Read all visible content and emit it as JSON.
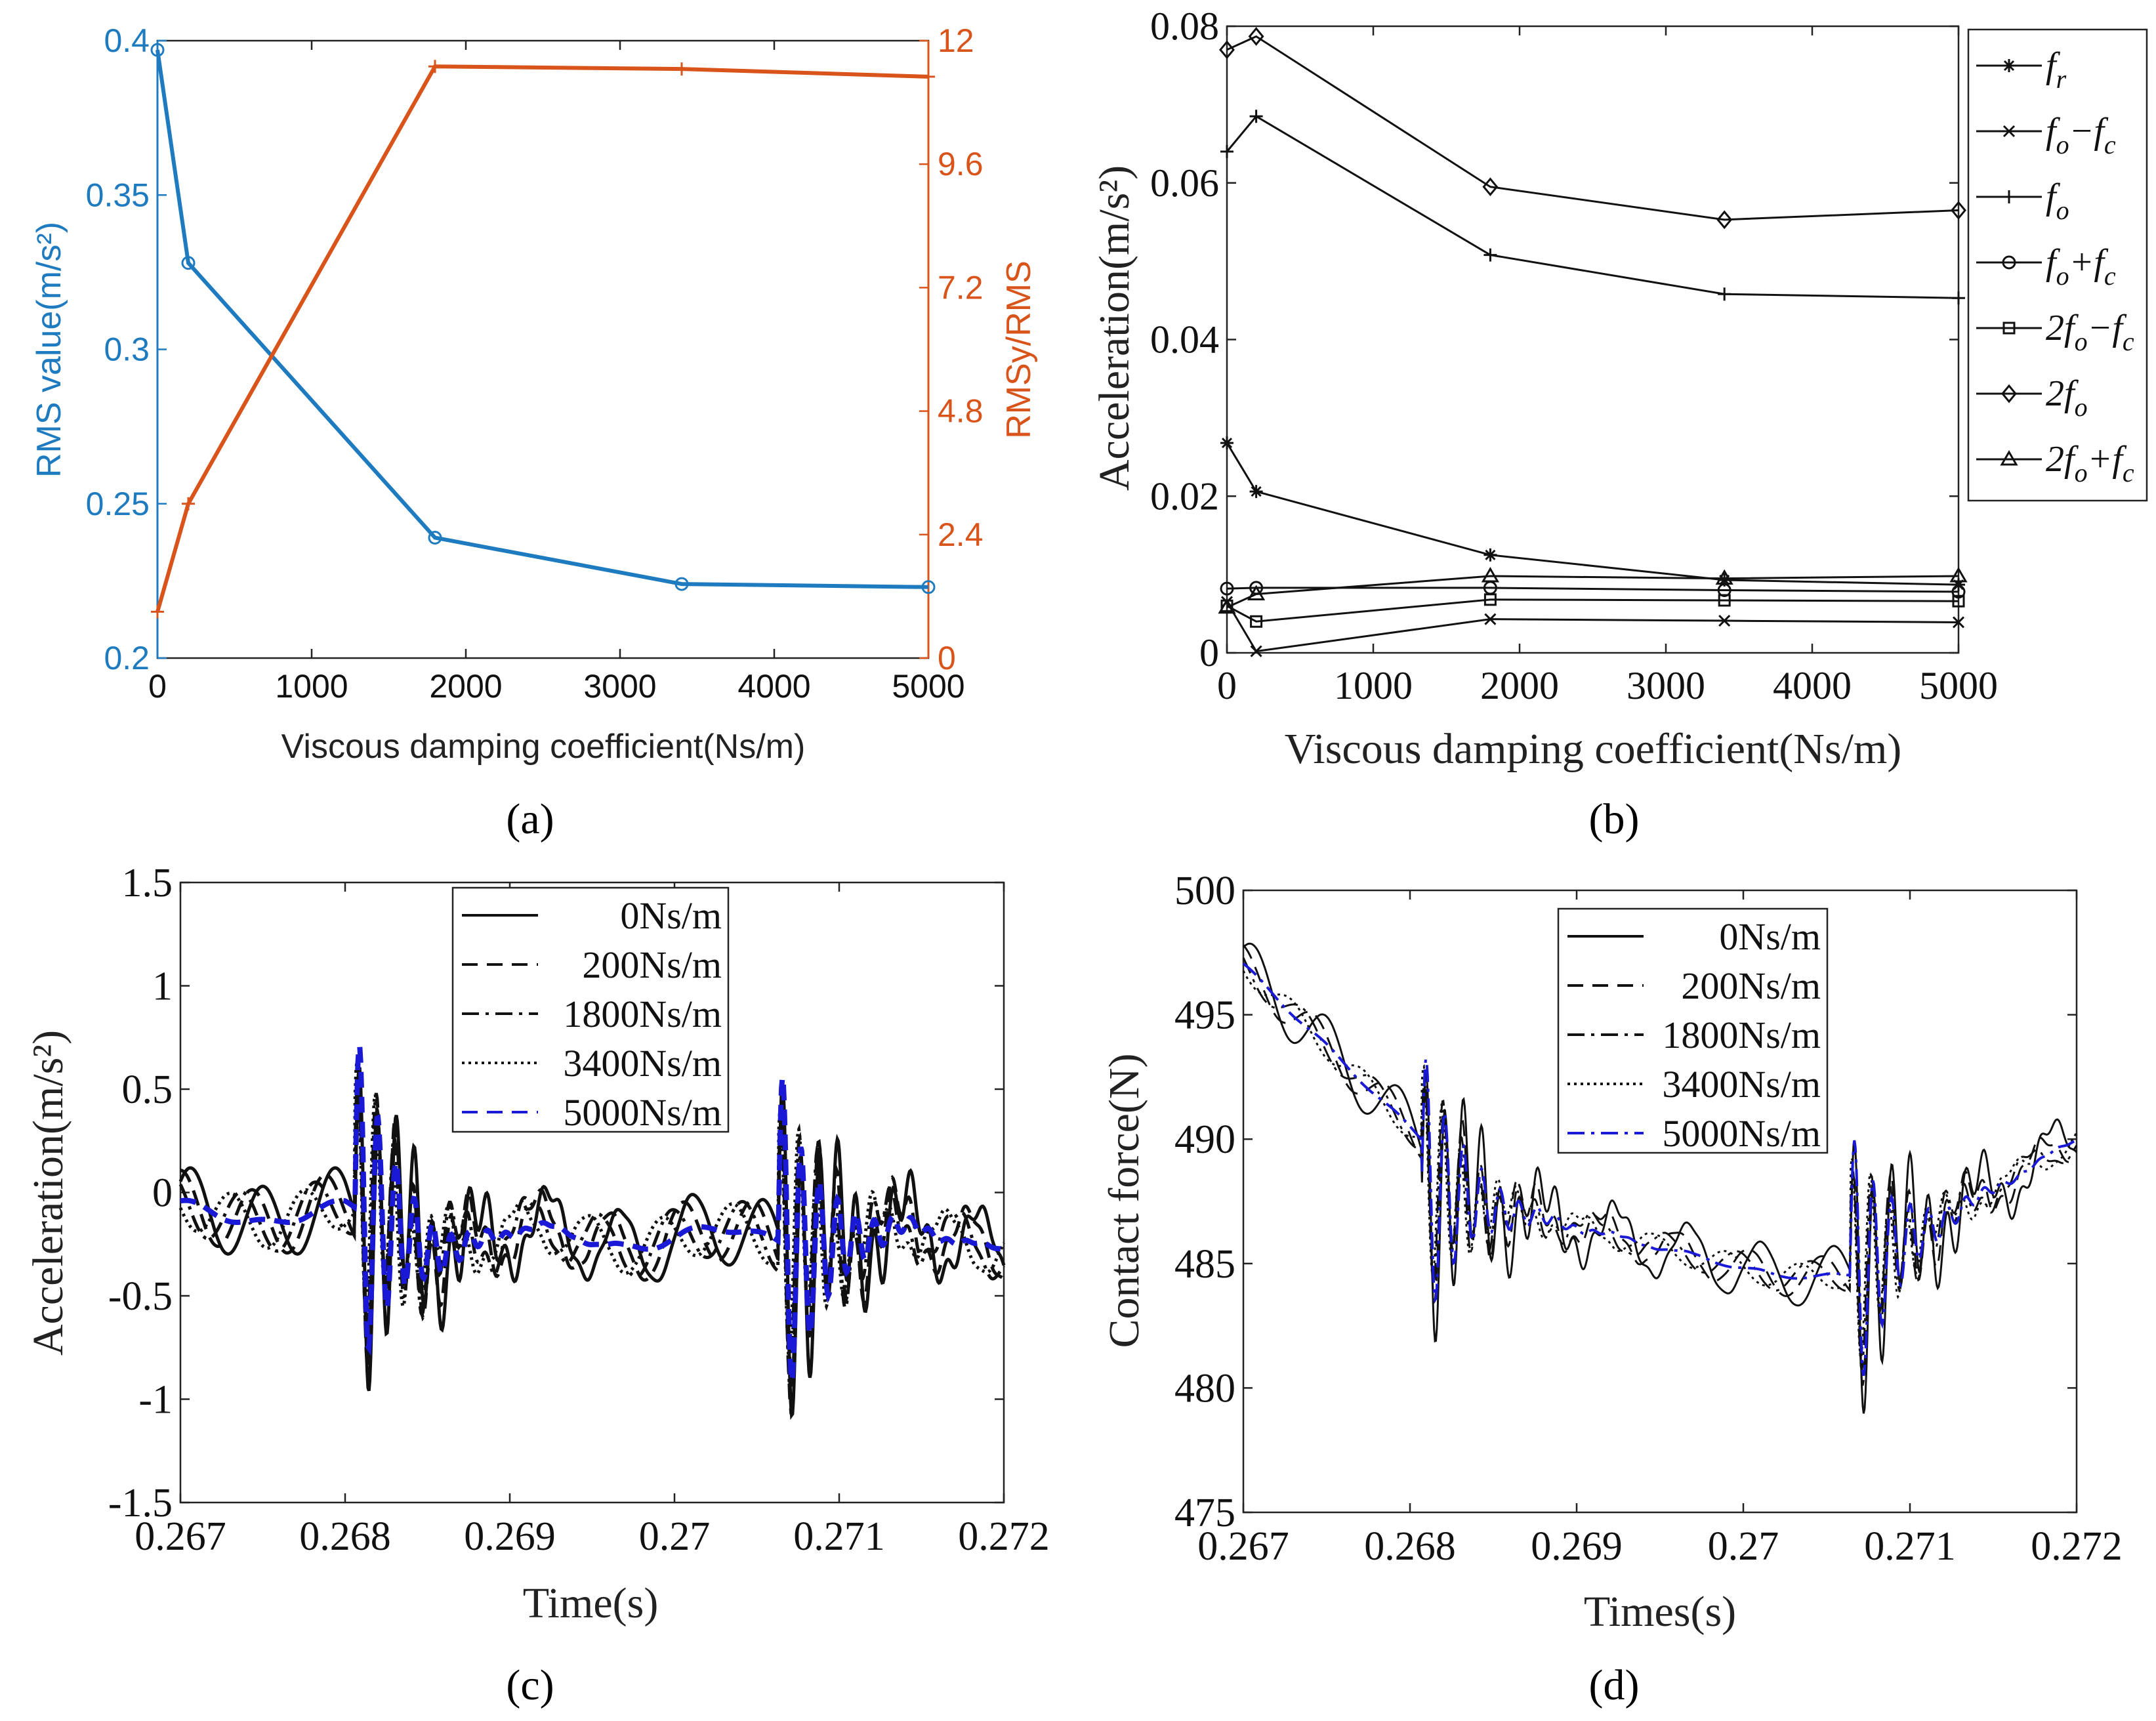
{
  "panel_labels": {
    "a": "(a)",
    "b": "(b)",
    "c": "(c)",
    "d": "(d)"
  },
  "colors": {
    "blue": "#1f7bbf",
    "orange": "#d9541a",
    "black": "#111111",
    "legend_blue": "#1a1ad6"
  },
  "chart_data": [
    {
      "id": "a",
      "type": "line",
      "title": "",
      "xlabel": "Viscous damping coefficient(Ns/m)",
      "ylabel_left": "RMS value(m/s²)",
      "ylabel_right": "RMSy/RMS",
      "xlim": [
        0,
        5000
      ],
      "ylim_left": [
        0.2,
        0.4
      ],
      "ylim_right": [
        0,
        12
      ],
      "xticks": [
        "0",
        "1000",
        "2000",
        "3000",
        "4000",
        "5000"
      ],
      "yticks_left": [
        "0.2",
        "0.25",
        "0.3",
        "0.35",
        "0.4"
      ],
      "yticks_right": [
        "0",
        "2.4",
        "4.8",
        "7.2",
        "9.6",
        "12"
      ],
      "x": [
        0,
        200,
        1800,
        3400,
        5000
      ],
      "series": [
        {
          "name": "RMS value",
          "axis": "left",
          "marker": "circle",
          "values": [
            0.397,
            0.328,
            0.239,
            0.224,
            0.223
          ]
        },
        {
          "name": "RMSy/RMS",
          "axis": "right",
          "marker": "plus",
          "values": [
            0.9,
            3.0,
            11.5,
            11.45,
            11.3
          ]
        }
      ]
    },
    {
      "id": "b",
      "type": "line",
      "xlabel": "Viscous damping coefficient(Ns/m)",
      "ylabel": "Acceleration(m/s²)",
      "xlim": [
        0,
        5000
      ],
      "ylim": [
        0,
        0.08
      ],
      "xticks": [
        "0",
        "1000",
        "2000",
        "3000",
        "4000",
        "5000"
      ],
      "yticks": [
        "0",
        "0.02",
        "0.04",
        "0.06",
        "0.08"
      ],
      "x": [
        0,
        200,
        1800,
        3400,
        5000
      ],
      "series": [
        {
          "name": "f_r",
          "legend": [
            "f",
            "r",
            "",
            ""
          ],
          "marker": "star",
          "values": [
            0.0268,
            0.0206,
            0.0125,
            0.0093,
            0.0087
          ]
        },
        {
          "name": "f_o-f_c",
          "legend": [
            "f",
            "o",
            "−f",
            "c"
          ],
          "marker": "x",
          "values": [
            0.0065,
            0.0002,
            0.0043,
            0.0041,
            0.0039
          ]
        },
        {
          "name": "f_o",
          "legend": [
            "f",
            "o",
            "",
            ""
          ],
          "marker": "plus",
          "values": [
            0.064,
            0.0685,
            0.0508,
            0.0458,
            0.0453
          ]
        },
        {
          "name": "f_o+f_c",
          "legend": [
            "f",
            "o",
            "+f",
            "c"
          ],
          "marker": "circle",
          "values": [
            0.0082,
            0.0083,
            0.0083,
            0.008,
            0.0078
          ]
        },
        {
          "name": "2f_o-f_c",
          "legend": [
            "2f",
            "o",
            "−f",
            "c"
          ],
          "marker": "square",
          "values": [
            0.006,
            0.004,
            0.0068,
            0.0067,
            0.0066
          ]
        },
        {
          "name": "2f_o",
          "legend": [
            "2f",
            "o",
            "",
            ""
          ],
          "marker": "diamond",
          "values": [
            0.077,
            0.0787,
            0.0595,
            0.0553,
            0.0565
          ]
        },
        {
          "name": "2f_o+f_c",
          "legend": [
            "2f",
            "o",
            "+f",
            "c"
          ],
          "marker": "triangle",
          "values": [
            0.0058,
            0.0075,
            0.0098,
            0.0095,
            0.0098
          ]
        }
      ]
    },
    {
      "id": "c",
      "type": "line",
      "xlabel": "Time(s)",
      "ylabel": "Acceleration(m/s²)",
      "xlim": [
        0.267,
        0.272
      ],
      "ylim": [
        -1.5,
        1.5
      ],
      "xticks": [
        "0.267",
        "0.268",
        "0.269",
        "0.27",
        "0.271",
        "0.272"
      ],
      "yticks": [
        "-1.5",
        "-1",
        "-0.5",
        "0",
        "0.5",
        "1",
        "1.5"
      ],
      "impacts": [
        0.26806,
        0.27063
      ],
      "series": [
        {
          "name": "0Ns/m",
          "style": "solid",
          "color": "#111111",
          "phase": 0.0,
          "osc": 0.18,
          "trans": 0.85
        },
        {
          "name": "200Ns/m",
          "style": "dashed",
          "color": "#111111",
          "phase": 0.9,
          "osc": 0.16,
          "trans": 0.8
        },
        {
          "name": "1800Ns/m",
          "style": "dashdot",
          "color": "#111111",
          "phase": 1.8,
          "osc": 0.14,
          "trans": 0.78
        },
        {
          "name": "3400Ns/m",
          "style": "dotted",
          "color": "#111111",
          "phase": 2.7,
          "osc": 0.12,
          "trans": 0.75
        },
        {
          "name": "5000Ns/m",
          "style": "dashed",
          "color": "#1a1ad6",
          "phase": 0.0,
          "osc": 0.02,
          "trans": 0.9
        }
      ]
    },
    {
      "id": "d",
      "type": "line",
      "xlabel": "Times(s)",
      "ylabel": "Contact force(N)",
      "xlim": [
        0.267,
        0.272
      ],
      "ylim": [
        475,
        500
      ],
      "xticks": [
        "0.267",
        "0.268",
        "0.269",
        "0.27",
        "0.271",
        "0.272"
      ],
      "yticks": [
        "475",
        "480",
        "485",
        "490",
        "495",
        "500"
      ],
      "impacts": [
        0.26807,
        0.27064
      ],
      "series": [
        {
          "name": "0Ns/m",
          "style": "solid",
          "color": "#111111",
          "phase": 0.0,
          "osc": 1.2,
          "trans": 6
        },
        {
          "name": "200Ns/m",
          "style": "dashed",
          "color": "#111111",
          "phase": 1.0,
          "osc": 0.8,
          "trans": 5
        },
        {
          "name": "1800Ns/m",
          "style": "dashdot",
          "color": "#111111",
          "phase": 2.0,
          "osc": 0.6,
          "trans": 5
        },
        {
          "name": "3400Ns/m",
          "style": "dotted",
          "color": "#111111",
          "phase": 3.0,
          "osc": 0.5,
          "trans": 5
        },
        {
          "name": "5000Ns/m",
          "style": "dashdot",
          "color": "#1a1ad6",
          "phase": 0.0,
          "osc": 0.1,
          "trans": 6
        }
      ]
    }
  ]
}
